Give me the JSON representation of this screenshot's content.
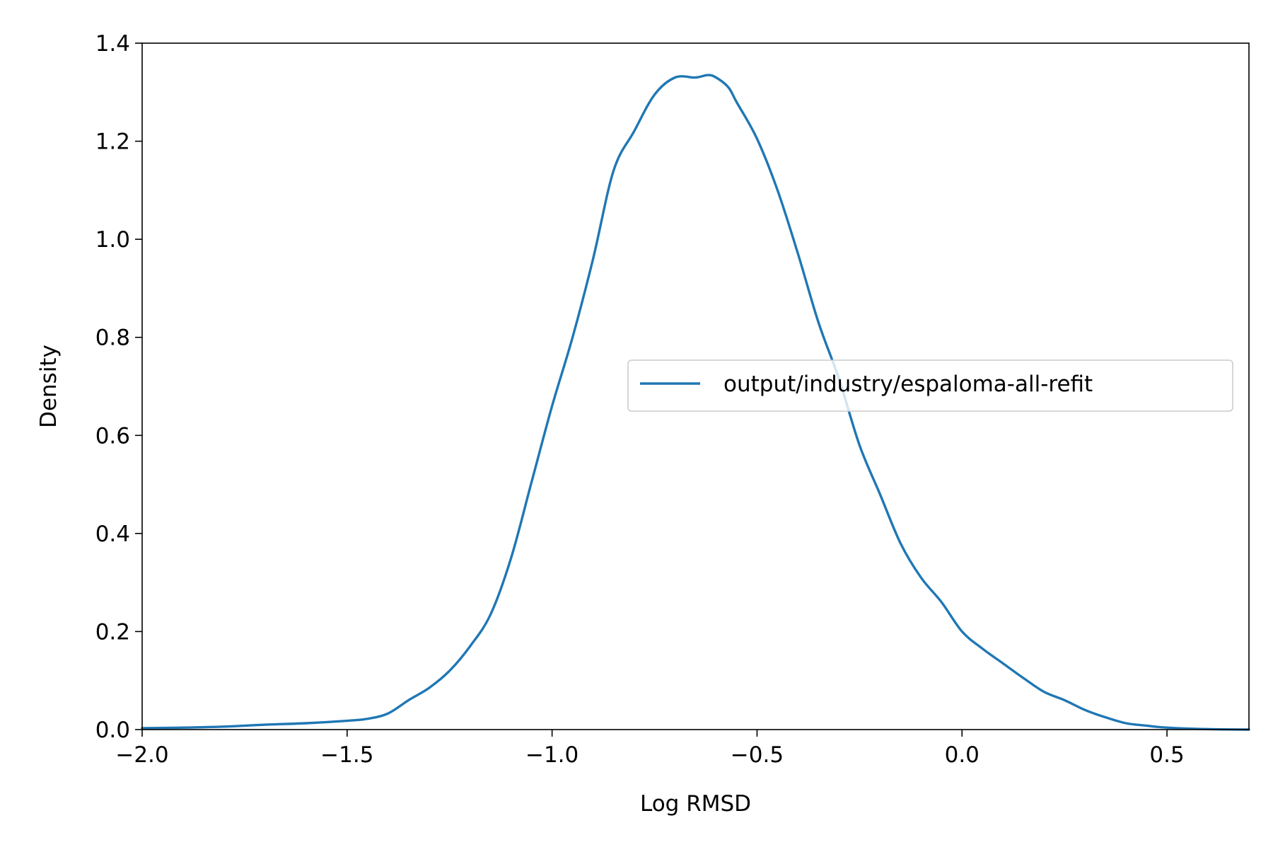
{
  "chart_data": {
    "type": "line",
    "title": "",
    "xlabel": "Log RMSD",
    "ylabel": "Density",
    "xlim": [
      -2.0,
      0.7
    ],
    "ylim": [
      0.0,
      1.4
    ],
    "xticks": [
      -2.0,
      -1.5,
      -1.0,
      -0.5,
      0.0,
      0.5
    ],
    "xtick_labels": [
      "−2.0",
      "−1.5",
      "−1.0",
      "−0.5",
      "0.0",
      "0.5"
    ],
    "yticks": [
      0.0,
      0.2,
      0.4,
      0.6,
      0.8,
      1.0,
      1.2,
      1.4
    ],
    "ytick_labels": [
      "0.0",
      "0.2",
      "0.4",
      "0.6",
      "0.8",
      "1.0",
      "1.2",
      "1.4"
    ],
    "grid": false,
    "legend_position": "center-right",
    "series": [
      {
        "name": "output/industry/espaloma-all-refit",
        "color": "#1f77b4",
        "x": [
          -2.0,
          -1.9,
          -1.8,
          -1.7,
          -1.6,
          -1.5,
          -1.45,
          -1.4,
          -1.35,
          -1.3,
          -1.25,
          -1.2,
          -1.15,
          -1.1,
          -1.05,
          -1.0,
          -0.95,
          -0.9,
          -0.85,
          -0.8,
          -0.75,
          -0.7,
          -0.65,
          -0.62,
          -0.6,
          -0.57,
          -0.55,
          -0.5,
          -0.45,
          -0.4,
          -0.35,
          -0.3,
          -0.25,
          -0.2,
          -0.15,
          -0.1,
          -0.05,
          0.0,
          0.05,
          0.1,
          0.15,
          0.2,
          0.25,
          0.3,
          0.35,
          0.4,
          0.45,
          0.5,
          0.6,
          0.7
        ],
        "y": [
          0.003,
          0.004,
          0.006,
          0.01,
          0.013,
          0.018,
          0.022,
          0.033,
          0.06,
          0.085,
          0.12,
          0.17,
          0.235,
          0.35,
          0.505,
          0.66,
          0.8,
          0.96,
          1.14,
          1.22,
          1.295,
          1.33,
          1.33,
          1.335,
          1.33,
          1.31,
          1.28,
          1.205,
          1.1,
          0.97,
          0.83,
          0.715,
          0.58,
          0.48,
          0.38,
          0.31,
          0.26,
          0.2,
          0.165,
          0.135,
          0.105,
          0.077,
          0.06,
          0.04,
          0.025,
          0.013,
          0.008,
          0.004,
          0.001,
          0.0
        ]
      }
    ]
  }
}
